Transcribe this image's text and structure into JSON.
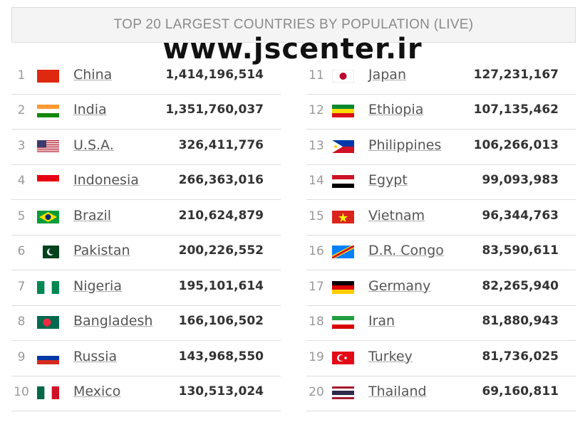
{
  "header": {
    "title": "TOP 20 LARGEST COUNTRIES BY POPULATION (LIVE)"
  },
  "watermark": "www.jscenter.ir",
  "table": {
    "rows": [
      [
        1,
        "China",
        "1,414,196,514"
      ],
      [
        2,
        "India",
        "1,351,760,037"
      ],
      [
        3,
        "U.S.A.",
        "326,411,776"
      ],
      [
        4,
        "Indonesia",
        "266,363,016"
      ],
      [
        5,
        "Brazil",
        "210,624,879"
      ],
      [
        6,
        "Pakistan",
        "200,226,552"
      ],
      [
        7,
        "Nigeria",
        "195,101,614"
      ],
      [
        8,
        "Bangladesh",
        "166,106,502"
      ],
      [
        9,
        "Russia",
        "143,968,550"
      ],
      [
        10,
        "Mexico",
        "130,513,024"
      ],
      [
        11,
        "Japan",
        "127,231,167"
      ],
      [
        12,
        "Ethiopia",
        "107,135,462"
      ],
      [
        13,
        "Philippines",
        "106,266,013"
      ],
      [
        14,
        "Egypt",
        "99,093,983"
      ],
      [
        15,
        "Vietnam",
        "96,344,763"
      ],
      [
        16,
        "D.R. Congo",
        "83,590,611"
      ],
      [
        17,
        "Germany",
        "82,265,940"
      ],
      [
        18,
        "Iran",
        "81,880,943"
      ],
      [
        19,
        "Turkey",
        "81,736,025"
      ],
      [
        20,
        "Thailand",
        "69,160,811"
      ]
    ]
  }
}
